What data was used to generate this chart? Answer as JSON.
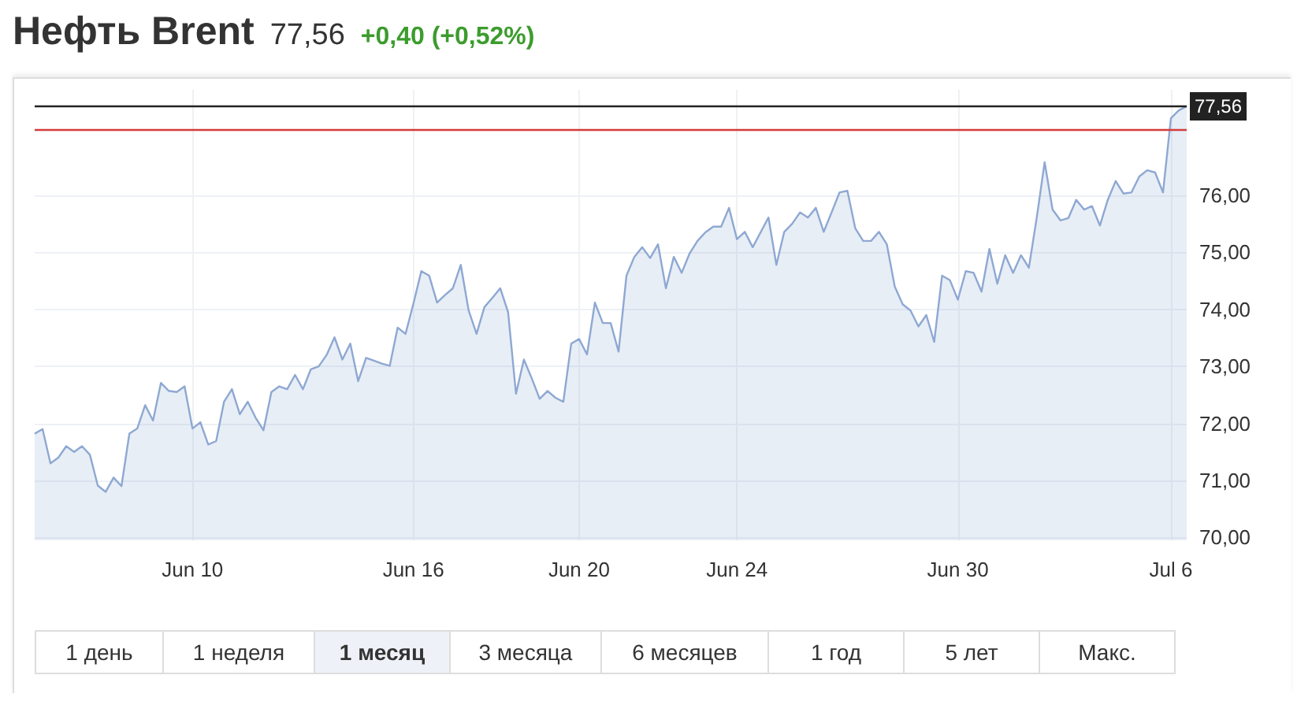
{
  "chart_data": {
    "type": "area",
    "title": "Нефть Brent",
    "annotations": [
      "77,56",
      "+0,40 (+0,52%)",
      "1 день",
      "1 неделя",
      "1 месяц",
      "3 месяца",
      "6 месяцев",
      "1 год",
      "5 лет",
      "Макс."
    ],
    "categories": [
      null,
      null,
      null,
      null,
      null,
      null,
      null,
      null,
      null,
      null,
      null,
      null,
      null,
      null,
      null,
      null,
      null,
      null,
      null,
      null,
      "Jun 10",
      null,
      null,
      null,
      null,
      null,
      null,
      null,
      null,
      null,
      null,
      null,
      null,
      null,
      null,
      null,
      null,
      null,
      null,
      null,
      null,
      null,
      null,
      null,
      null,
      null,
      null,
      null,
      "Jun 16",
      null,
      null,
      null,
      null,
      null,
      null,
      null,
      null,
      null,
      null,
      null,
      null,
      null,
      null,
      null,
      null,
      null,
      null,
      null,
      null,
      "Jun 20",
      null,
      null,
      null,
      null,
      null,
      null,
      null,
      null,
      null,
      null,
      null,
      null,
      null,
      null,
      null,
      null,
      null,
      null,
      null,
      "Jun 24",
      null,
      null,
      null,
      null,
      null,
      null,
      null,
      null,
      null,
      null,
      null,
      null,
      null,
      null,
      null,
      null,
      null,
      null,
      null,
      null,
      null,
      null,
      null,
      null,
      null,
      null,
      null,
      "Jun 30",
      null,
      null,
      null,
      null,
      null,
      null,
      null,
      null,
      null,
      null,
      null,
      null,
      null,
      null,
      null,
      null,
      null,
      null,
      null,
      null,
      null,
      null,
      null,
      null,
      null,
      null,
      "Jul 6",
      null,
      null
    ],
    "series": [
      {
        "color": "#8ea8d2",
        "values": [
          71.82,
          71.9,
          71.3,
          71.4,
          71.6,
          71.5,
          71.6,
          71.45,
          70.91,
          70.8,
          71.05,
          70.9,
          71.82,
          71.91,
          72.32,
          72.05,
          72.71,
          72.57,
          72.55,
          72.65,
          71.91,
          72.02,
          71.63,
          71.69,
          72.38,
          72.6,
          72.16,
          72.38,
          72.1,
          71.88,
          72.55,
          72.65,
          72.6,
          72.85,
          72.6,
          72.95,
          73.0,
          73.2,
          73.51,
          73.12,
          73.4,
          72.74,
          73.15,
          73.1,
          73.05,
          73.01,
          73.68,
          73.57,
          74.1,
          74.67,
          74.59,
          74.12,
          74.25,
          74.37,
          74.78,
          73.98,
          73.57,
          74.04,
          74.2,
          74.37,
          73.95,
          72.52,
          73.12,
          72.79,
          72.43,
          72.57,
          72.45,
          72.38,
          73.4,
          73.48,
          73.21,
          74.12,
          73.76,
          73.76,
          73.26,
          74.59,
          74.92,
          75.09,
          74.9,
          75.14,
          74.37,
          74.92,
          74.64,
          74.98,
          75.2,
          75.35,
          75.45,
          75.45,
          75.78,
          75.23,
          75.36,
          75.09,
          75.35,
          75.61,
          74.78,
          75.36,
          75.5,
          75.7,
          75.61,
          75.78,
          75.36,
          75.7,
          76.05,
          76.08,
          75.42,
          75.2,
          75.2,
          75.36,
          75.14,
          74.4,
          74.09,
          73.98,
          73.7,
          73.9,
          73.43,
          74.59,
          74.51,
          74.17,
          74.67,
          74.64,
          74.31,
          75.06,
          74.45,
          74.95,
          74.64,
          74.95,
          74.73,
          75.61,
          76.58,
          75.75,
          75.56,
          75.6,
          75.92,
          75.75,
          75.81,
          75.47,
          75.92,
          76.25,
          76.03,
          76.05,
          76.33,
          76.44,
          76.4,
          76.05,
          77.35,
          77.49,
          77.56
        ]
      }
    ],
    "ylim": [
      69.95,
      77.85
    ],
    "yticks": [
      {
        "value": 70,
        "label": "70,00"
      },
      {
        "value": 71,
        "label": "71,00"
      },
      {
        "value": 72,
        "label": "72,00"
      },
      {
        "value": 73,
        "label": "73,00"
      },
      {
        "value": 74,
        "label": "74,00"
      },
      {
        "value": 75,
        "label": "75,00"
      },
      {
        "value": 76,
        "label": "76,00"
      }
    ],
    "ref_lines": [
      {
        "axis": "y",
        "value": 77.56,
        "label": "77,56",
        "color": "#222222"
      },
      {
        "axis": "y",
        "value": 77.16,
        "color": "#d33b3b"
      }
    ],
    "grid": true,
    "marker": "none",
    "line_style": "solid"
  }
}
